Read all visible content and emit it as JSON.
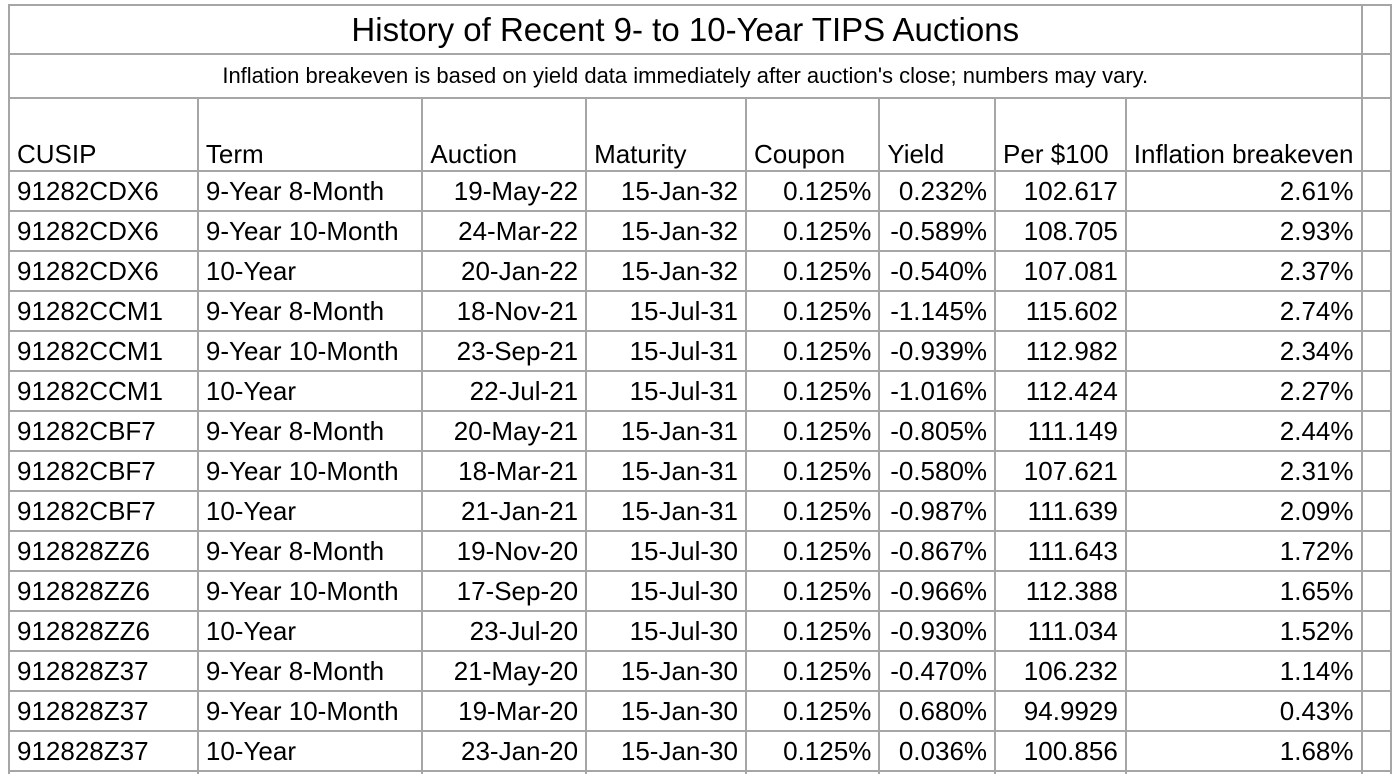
{
  "title": "History of Recent 9- to 10-Year TIPS Auctions",
  "subtitle": "Inflation breakeven is based on yield data immediately after auction's close; numbers may vary.",
  "colors": {
    "border": "#a6a6a6",
    "text": "#000000",
    "background": "#ffffff"
  },
  "table": {
    "columns": [
      "CUSIP",
      "Term",
      "Auction",
      "Maturity",
      "Coupon",
      "Yield",
      "Per $100",
      "Inflation breakeven"
    ],
    "rows": [
      [
        "91282CDX6",
        "9-Year 8-Month",
        "19-May-22",
        "15-Jan-32",
        "0.125%",
        "0.232%",
        "102.617",
        "2.61%"
      ],
      [
        "91282CDX6",
        "9-Year 10-Month",
        "24-Mar-22",
        "15-Jan-32",
        "0.125%",
        "-0.589%",
        "108.705",
        "2.93%"
      ],
      [
        "91282CDX6",
        "10-Year",
        "20-Jan-22",
        "15-Jan-32",
        "0.125%",
        "-0.540%",
        "107.081",
        "2.37%"
      ],
      [
        "91282CCM1",
        "9-Year 8-Month",
        "18-Nov-21",
        "15-Jul-31",
        "0.125%",
        "-1.145%",
        "115.602",
        "2.74%"
      ],
      [
        "91282CCM1",
        "9-Year 10-Month",
        "23-Sep-21",
        "15-Jul-31",
        "0.125%",
        "-0.939%",
        "112.982",
        "2.34%"
      ],
      [
        "91282CCM1",
        "10-Year",
        "22-Jul-21",
        "15-Jul-31",
        "0.125%",
        "-1.016%",
        "112.424",
        "2.27%"
      ],
      [
        "91282CBF7",
        "9-Year 8-Month",
        "20-May-21",
        "15-Jan-31",
        "0.125%",
        "-0.805%",
        "111.149",
        "2.44%"
      ],
      [
        "91282CBF7",
        "9-Year 10-Month",
        "18-Mar-21",
        "15-Jan-31",
        "0.125%",
        "-0.580%",
        "107.621",
        "2.31%"
      ],
      [
        "91282CBF7",
        "10-Year",
        "21-Jan-21",
        "15-Jan-31",
        "0.125%",
        "-0.987%",
        "111.639",
        "2.09%"
      ],
      [
        "912828ZZ6",
        "9-Year 8-Month",
        "19-Nov-20",
        "15-Jul-30",
        "0.125%",
        "-0.867%",
        "111.643",
        "1.72%"
      ],
      [
        "912828ZZ6",
        "9-Year 10-Month",
        "17-Sep-20",
        "15-Jul-30",
        "0.125%",
        "-0.966%",
        "112.388",
        "1.65%"
      ],
      [
        "912828ZZ6",
        "10-Year",
        "23-Jul-20",
        "15-Jul-30",
        "0.125%",
        "-0.930%",
        "111.034",
        "1.52%"
      ],
      [
        "912828Z37",
        "9-Year 8-Month",
        "21-May-20",
        "15-Jan-30",
        "0.125%",
        "-0.470%",
        "106.232",
        "1.14%"
      ],
      [
        "912828Z37",
        "9-Year 10-Month",
        "19-Mar-20",
        "15-Jan-30",
        "0.125%",
        "0.680%",
        "94.9929",
        "0.43%"
      ],
      [
        "912828Z37",
        "10-Year",
        "23-Jan-20",
        "15-Jan-30",
        "0.125%",
        "0.036%",
        "100.856",
        "1.68%"
      ]
    ]
  }
}
